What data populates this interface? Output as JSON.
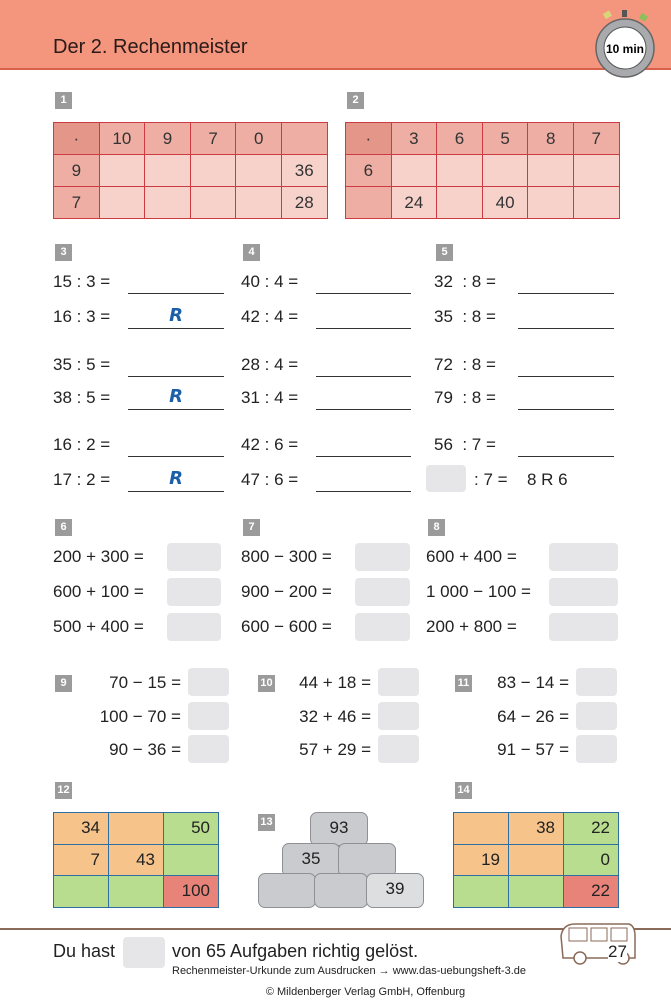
{
  "header": {
    "title": "Der 2. Rechenmeister",
    "timer_label": "10 min",
    "color": "#f4957d"
  },
  "s1": {
    "badge": "1",
    "head": [
      "·",
      "10",
      "9",
      "7",
      "0",
      ""
    ],
    "rows": [
      [
        "9",
        "",
        "",
        "",
        "",
        "36"
      ],
      [
        "7",
        "",
        "",
        "",
        "",
        "28"
      ]
    ]
  },
  "s2": {
    "badge": "2",
    "head": [
      "·",
      "3",
      "6",
      "5",
      "8",
      "7"
    ],
    "rows": [
      [
        "6",
        "",
        "",
        "",
        "",
        ""
      ],
      [
        "",
        "24",
        "",
        "40",
        "",
        ""
      ]
    ]
  },
  "s3": {
    "badge": "3",
    "rows": [
      {
        "eq": "15 : 3 =",
        "ans": ""
      },
      {
        "eq": "16 : 3 =",
        "ans": "R"
      },
      {
        "eq": "35 : 5 =",
        "ans": ""
      },
      {
        "eq": "38 : 5 =",
        "ans": "R"
      },
      {
        "eq": "16 : 2 =",
        "ans": ""
      },
      {
        "eq": "17 : 2 =",
        "ans": "R"
      }
    ]
  },
  "s4": {
    "badge": "4",
    "rows": [
      {
        "eq": "40 : 4 ="
      },
      {
        "eq": "42 : 4 ="
      },
      {
        "eq": "28 : 4 ="
      },
      {
        "eq": "31 : 4 ="
      },
      {
        "eq": "42 : 6 ="
      },
      {
        "eq": "47 : 6 ="
      }
    ]
  },
  "s5": {
    "badge": "5",
    "rows": [
      {
        "eq": "32  : 8 ="
      },
      {
        "eq": "35  : 8 ="
      },
      {
        "eq": "72  : 8 ="
      },
      {
        "eq": "79  : 8 ="
      },
      {
        "eq": "56  : 7 ="
      }
    ],
    "last_eq": ": 7 =",
    "last_result": "8 R 6"
  },
  "s6": {
    "badge": "6",
    "rows": [
      "200 + 300 =",
      "600 + 100 =",
      "500 + 400 ="
    ]
  },
  "s7": {
    "badge": "7",
    "rows": [
      "800 − 300 =",
      "900 − 200 =",
      "600 − 600 ="
    ]
  },
  "s8": {
    "badge": "8",
    "rows": [
      "600 + 400 =",
      "1 000 − 100 =",
      "200 + 800 ="
    ]
  },
  "s9": {
    "badge": "9",
    "rows": [
      "70 − 15 =",
      "100 − 70 =",
      "90 − 36 ="
    ]
  },
  "s10": {
    "badge": "10",
    "rows": [
      "44 + 18 =",
      "32 + 46 =",
      "57 + 29 ="
    ]
  },
  "s11": {
    "badge": "11",
    "rows": [
      "83 − 14 =",
      "64 − 26 =",
      "91 − 57 ="
    ]
  },
  "s12": {
    "badge": "12",
    "cells": [
      [
        "34",
        "",
        "50"
      ],
      [
        "7",
        "43",
        ""
      ],
      [
        "",
        "",
        "100"
      ]
    ]
  },
  "s13": {
    "badge": "13",
    "top": "93",
    "middle": [
      "35",
      ""
    ],
    "bottom": [
      "",
      "",
      "39"
    ]
  },
  "s14": {
    "badge": "14",
    "cells": [
      [
        "",
        "38",
        "22"
      ],
      [
        "19",
        "",
        "0"
      ],
      [
        "",
        "",
        "22"
      ]
    ]
  },
  "footer": {
    "prefix": "Du hast",
    "suffix": "von 65 Aufgaben richtig gelöst.",
    "link_text": "Rechenmeister-Urkunde zum Ausdrucken → www.das-uebungsheft-3.de",
    "copyright": "© Mildenberger Verlag GmbH, Offenburg",
    "page_number": "27"
  }
}
